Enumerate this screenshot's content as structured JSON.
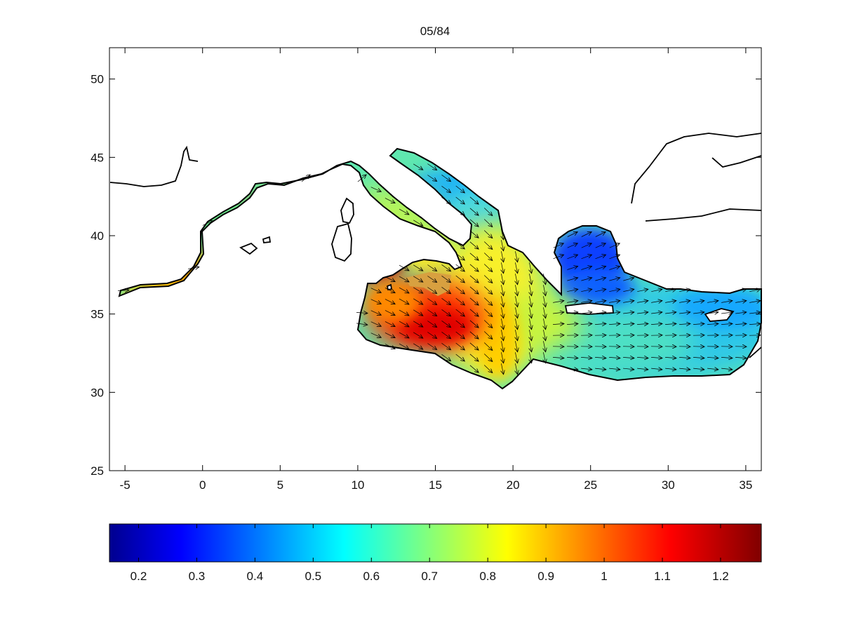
{
  "map": {
    "title": "05/84",
    "x_ticks": [
      "-5",
      "0",
      "5",
      "10",
      "15",
      "20",
      "25",
      "30",
      "35"
    ],
    "y_ticks": [
      "50",
      "45",
      "40",
      "35",
      "30",
      "25"
    ]
  },
  "chart_data": {
    "type": "heatmap",
    "title": "05/84",
    "xlabel": "",
    "ylabel": "",
    "xlim": [
      -6,
      36
    ],
    "ylim": [
      25,
      52
    ],
    "x_ticks": [
      -5,
      0,
      5,
      10,
      15,
      20,
      25,
      30,
      35
    ],
    "y_ticks": [
      25,
      30,
      35,
      40,
      45,
      50
    ],
    "colorscale": "jet",
    "colorbar": {
      "range": [
        0.15,
        1.27
      ],
      "ticks": [
        "0.2",
        "0.3",
        "0.4",
        "0.5",
        "0.6",
        "0.7",
        "0.8",
        "0.9",
        "1",
        "1.1",
        "1.2"
      ],
      "placement": "bottom"
    },
    "overlay": "velocity vector arrows",
    "grid": false
  }
}
